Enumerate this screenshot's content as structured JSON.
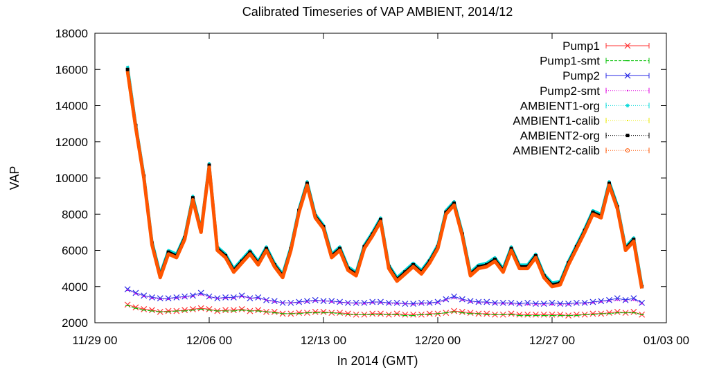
{
  "chart_data": {
    "type": "line",
    "title": "Calibrated Timeseries of VAP AMBIENT, 2014/12",
    "xlabel": "In 2014 (GMT)",
    "ylabel": "VAP",
    "xlim": [
      "2014-11-29 00:00",
      "2015-01-03 00:00"
    ],
    "ylim": [
      2000,
      18000
    ],
    "x_ticks": [
      "11/29 00",
      "12/06 00",
      "12/13 00",
      "12/20 00",
      "12/27 00",
      "01/03 00"
    ],
    "y_ticks": [
      2000,
      4000,
      6000,
      8000,
      10000,
      12000,
      14000,
      16000,
      18000
    ],
    "grid": false,
    "legend_position": "top-right",
    "x": [
      "2014-12-01 00:00",
      "2014-12-01 12:00",
      "2014-12-02 00:00",
      "2014-12-02 12:00",
      "2014-12-03 00:00",
      "2014-12-03 12:00",
      "2014-12-04 00:00",
      "2014-12-04 12:00",
      "2014-12-05 00:00",
      "2014-12-05 12:00",
      "2014-12-06 00:00",
      "2014-12-06 12:00",
      "2014-12-07 00:00",
      "2014-12-07 12:00",
      "2014-12-08 00:00",
      "2014-12-08 12:00",
      "2014-12-09 00:00",
      "2014-12-09 12:00",
      "2014-12-10 00:00",
      "2014-12-10 12:00",
      "2014-12-11 00:00",
      "2014-12-11 12:00",
      "2014-12-12 00:00",
      "2014-12-12 12:00",
      "2014-12-13 00:00",
      "2014-12-13 12:00",
      "2014-12-14 00:00",
      "2014-12-14 12:00",
      "2014-12-15 00:00",
      "2014-12-15 12:00",
      "2014-12-16 00:00",
      "2014-12-16 12:00",
      "2014-12-17 00:00",
      "2014-12-17 12:00",
      "2014-12-18 00:00",
      "2014-12-18 12:00",
      "2014-12-19 00:00",
      "2014-12-19 12:00",
      "2014-12-20 00:00",
      "2014-12-20 12:00",
      "2014-12-21 00:00",
      "2014-12-21 12:00",
      "2014-12-22 00:00",
      "2014-12-22 12:00",
      "2014-12-23 00:00",
      "2014-12-23 12:00",
      "2014-12-24 00:00",
      "2014-12-24 12:00",
      "2014-12-25 00:00",
      "2014-12-25 12:00",
      "2014-12-26 00:00",
      "2014-12-26 12:00",
      "2014-12-27 00:00",
      "2014-12-27 12:00",
      "2014-12-28 00:00",
      "2014-12-28 12:00",
      "2014-12-29 00:00",
      "2014-12-29 12:00",
      "2014-12-30 00:00",
      "2014-12-30 12:00",
      "2014-12-31 00:00",
      "2014-12-31 12:00",
      "2015-01-01 00:00",
      "2015-01-01 12:00"
    ],
    "series": [
      {
        "name": "Pump1",
        "color": "#ff3030",
        "marker": "x",
        "values": [
          3000,
          2850,
          2750,
          2700,
          2600,
          2650,
          2650,
          2700,
          2750,
          2800,
          2750,
          2650,
          2700,
          2700,
          2750,
          2650,
          2700,
          2600,
          2600,
          2500,
          2500,
          2550,
          2550,
          2600,
          2600,
          2550,
          2550,
          2500,
          2450,
          2450,
          2500,
          2500,
          2450,
          2500,
          2450,
          2450,
          2450,
          2500,
          2500,
          2550,
          2650,
          2600,
          2550,
          2500,
          2500,
          2450,
          2450,
          2500,
          2450,
          2450,
          2450,
          2450,
          2450,
          2450,
          2400,
          2450,
          2450,
          2500,
          2500,
          2550,
          2600,
          2550,
          2600,
          2450
        ]
      },
      {
        "name": "Pump1-smt",
        "color": "#00c000",
        "marker": "dash",
        "values": [
          2950,
          2800,
          2700,
          2650,
          2600,
          2600,
          2650,
          2650,
          2700,
          2750,
          2700,
          2650,
          2650,
          2650,
          2700,
          2650,
          2650,
          2600,
          2550,
          2500,
          2500,
          2500,
          2550,
          2550,
          2550,
          2550,
          2500,
          2450,
          2450,
          2450,
          2450,
          2450,
          2450,
          2450,
          2400,
          2400,
          2450,
          2450,
          2500,
          2550,
          2600,
          2550,
          2500,
          2500,
          2450,
          2450,
          2450,
          2450,
          2400,
          2400,
          2400,
          2400,
          2400,
          2400,
          2400,
          2400,
          2450,
          2450,
          2500,
          2500,
          2550,
          2550,
          2550,
          2450
        ]
      },
      {
        "name": "Pump2",
        "color": "#2a2ae6",
        "marker": "x",
        "values": [
          3850,
          3650,
          3500,
          3400,
          3350,
          3350,
          3400,
          3450,
          3500,
          3650,
          3450,
          3350,
          3400,
          3400,
          3500,
          3350,
          3400,
          3250,
          3200,
          3100,
          3100,
          3150,
          3200,
          3250,
          3200,
          3200,
          3150,
          3100,
          3100,
          3100,
          3150,
          3150,
          3100,
          3100,
          3050,
          3050,
          3100,
          3100,
          3150,
          3300,
          3450,
          3300,
          3200,
          3150,
          3150,
          3100,
          3100,
          3100,
          3050,
          3100,
          3050,
          3050,
          3100,
          3050,
          3050,
          3100,
          3100,
          3150,
          3200,
          3250,
          3350,
          3250,
          3350,
          3100
        ]
      },
      {
        "name": "Pump2-smt",
        "color": "#e000e0",
        "marker": "dot",
        "values": [
          3800,
          3600,
          3450,
          3350,
          3300,
          3300,
          3350,
          3400,
          3450,
          3550,
          3400,
          3350,
          3350,
          3350,
          3450,
          3350,
          3350,
          3250,
          3150,
          3100,
          3100,
          3100,
          3150,
          3200,
          3200,
          3150,
          3100,
          3100,
          3050,
          3050,
          3100,
          3100,
          3050,
          3050,
          3050,
          3000,
          3050,
          3050,
          3100,
          3250,
          3350,
          3250,
          3150,
          3100,
          3100,
          3050,
          3050,
          3050,
          3000,
          3000,
          3000,
          3000,
          3000,
          3000,
          3000,
          3050,
          3050,
          3100,
          3150,
          3200,
          3250,
          3200,
          3250,
          3050
        ]
      },
      {
        "name": "AMBIENT1-org",
        "color": "#00d8d8",
        "marker": "star",
        "values": [
          16200,
          13000,
          10200,
          6500,
          4700,
          6000,
          5800,
          6800,
          9000,
          7200,
          10800,
          6200,
          5800,
          5000,
          5500,
          6000,
          5400,
          6200,
          5300,
          4700,
          6200,
          8300,
          9800,
          8000,
          7400,
          5800,
          6200,
          5100,
          4800,
          6300,
          7000,
          7800,
          5200,
          4500,
          4900,
          5300,
          4900,
          5500,
          6300,
          8200,
          8700,
          7000,
          4800,
          5200,
          5300,
          5600,
          5000,
          6200,
          5200,
          5200,
          5800,
          4700,
          4200,
          4300,
          5400,
          6300,
          7200,
          8200,
          8000,
          9800,
          8500,
          6200,
          6700,
          4100
        ]
      },
      {
        "name": "AMBIENT1-calib",
        "color": "#eaea00",
        "marker": "dot",
        "values": [
          15800,
          12700,
          10000,
          6300,
          4500,
          5800,
          5600,
          6600,
          8800,
          7000,
          10600,
          6000,
          5600,
          4800,
          5300,
          5800,
          5200,
          6000,
          5100,
          4500,
          6000,
          8100,
          9600,
          7800,
          7200,
          5600,
          6000,
          4900,
          4600,
          6100,
          6800,
          7600,
          5000,
          4300,
          4700,
          5100,
          4700,
          5300,
          6100,
          8000,
          8500,
          6800,
          4600,
          5000,
          5100,
          5400,
          4800,
          6000,
          5000,
          5000,
          5600,
          4500,
          4000,
          4100,
          5200,
          6100,
          7000,
          8000,
          7800,
          9600,
          8300,
          6000,
          6500,
          3900
        ]
      },
      {
        "name": "AMBIENT2-org",
        "color": "#000000",
        "marker": "square",
        "values": [
          16000,
          12900,
          10100,
          6400,
          4600,
          5900,
          5700,
          6700,
          8900,
          7100,
          10700,
          6100,
          5700,
          4900,
          5400,
          5900,
          5300,
          6100,
          5200,
          4600,
          6100,
          8200,
          9700,
          7900,
          7300,
          5700,
          6100,
          5000,
          4700,
          6200,
          6900,
          7700,
          5100,
          4400,
          4800,
          5200,
          4800,
          5400,
          6200,
          8100,
          8600,
          6900,
          4700,
          5100,
          5200,
          5500,
          4900,
          6100,
          5100,
          5100,
          5700,
          4600,
          4100,
          4200,
          5300,
          6200,
          7100,
          8100,
          7900,
          9700,
          8400,
          6100,
          6600,
          4000
        ]
      },
      {
        "name": "AMBIENT2-calib",
        "color": "#ff5500",
        "marker": "circle",
        "values": [
          15900,
          12800,
          10000,
          6300,
          4500,
          5800,
          5600,
          6600,
          8800,
          7000,
          10600,
          6000,
          5600,
          4800,
          5300,
          5800,
          5200,
          6000,
          5100,
          4500,
          6000,
          8100,
          9600,
          7800,
          7200,
          5600,
          6000,
          4900,
          4600,
          6100,
          6800,
          7600,
          5000,
          4300,
          4700,
          5100,
          4700,
          5300,
          6100,
          8000,
          8500,
          6800,
          4600,
          5000,
          5100,
          5400,
          4800,
          6000,
          5000,
          5000,
          5600,
          4500,
          4000,
          4100,
          5200,
          6100,
          7000,
          8000,
          7800,
          9600,
          8300,
          6000,
          6500,
          3900
        ]
      }
    ]
  }
}
